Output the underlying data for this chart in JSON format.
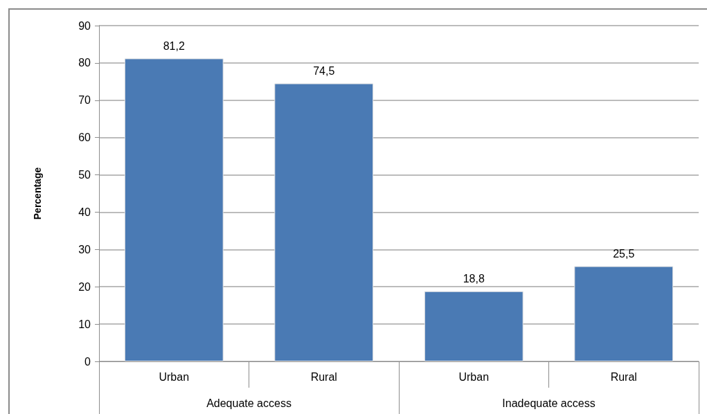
{
  "chart_data": {
    "type": "bar",
    "ylabel": "Percentage",
    "categories": [
      "Urban",
      "Rural",
      "Urban",
      "Rural"
    ],
    "values": [
      81.2,
      74.5,
      18.8,
      25.5
    ],
    "value_labels": [
      "81,2",
      "74,5",
      "18,8",
      "25,5"
    ],
    "color": "#4a7ab4",
    "annotations": [
      "Adequate access",
      "Inadequate access"
    ],
    "ylim": [
      0,
      90
    ],
    "yticks": [
      0,
      10,
      20,
      30,
      40,
      50,
      60,
      70,
      80,
      90
    ],
    "grid": "y"
  }
}
